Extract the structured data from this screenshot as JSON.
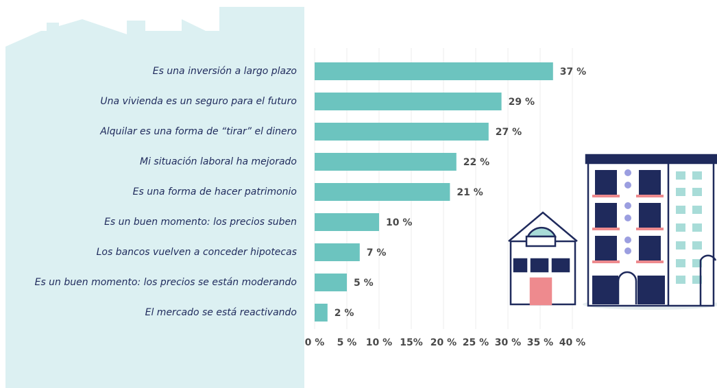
{
  "chart_data": {
    "type": "bar",
    "orientation": "horizontal",
    "categories": [
      "Es una inversión a largo plazo",
      "Una vivienda es un seguro para el futuro",
      "Alquilar es una forma de “tirar” el dinero",
      "Mi situación laboral ha mejorado",
      "Es una forma de hacer patrimonio",
      "Es un buen momento: los precios suben",
      "Los bancos vuelven a conceder hipotecas",
      "Es un buen momento: los precios se están moderando",
      "El mercado se está reactivando"
    ],
    "values": [
      37,
      29,
      27,
      22,
      21,
      10,
      7,
      5,
      2
    ],
    "value_labels": [
      "37 %",
      "29 %",
      "27 %",
      "22 %",
      "21 %",
      "10 %",
      "7 %",
      "5 %",
      "2 %"
    ],
    "color": "#6cc4bf",
    "xlim": [
      0,
      40
    ],
    "xticks": [
      {
        "value": 0,
        "label": "0 %"
      },
      {
        "value": 5,
        "label": "5 %"
      },
      {
        "value": 10,
        "label": "10 %"
      },
      {
        "value": 15,
        "label": "15%"
      },
      {
        "value": 20,
        "label": "20 %"
      },
      {
        "value": 25,
        "label": "25 %"
      },
      {
        "value": 30,
        "label": "30 %"
      },
      {
        "value": 35,
        "label": "35 %"
      },
      {
        "value": 40,
        "label": "40 %"
      }
    ],
    "grid": true
  }
}
